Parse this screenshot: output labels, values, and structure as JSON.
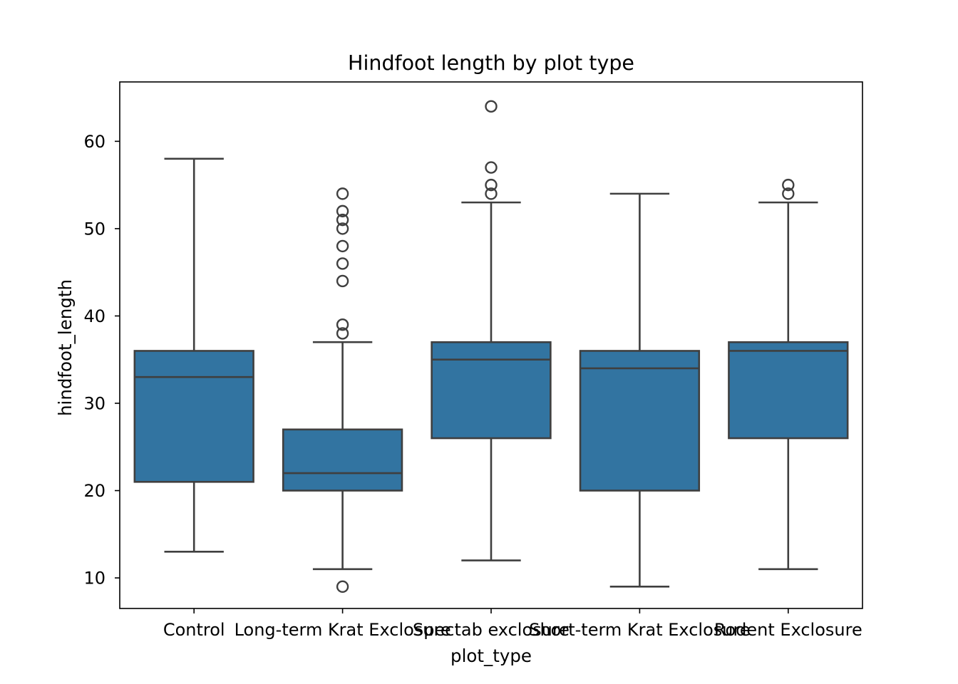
{
  "chart_data": {
    "type": "box",
    "title": "Hindfoot length by plot type",
    "xlabel": "plot_type",
    "ylabel": "hindfoot_length",
    "ylim": [
      6.5,
      66.8
    ],
    "yticks": [
      10,
      20,
      30,
      40,
      50,
      60
    ],
    "grid": false,
    "color": "#3274a1",
    "edge_color": "#3f3f3f",
    "categories": [
      "Control",
      "Long-term Krat Exclosure",
      "Spectab exclosure",
      "Short-term Krat Exclosure",
      "Rodent Exclosure"
    ],
    "boxes": [
      {
        "category": "Control",
        "whisker_low": 13,
        "q1": 21,
        "median": 33,
        "q3": 36,
        "whisker_high": 58,
        "outliers": []
      },
      {
        "category": "Long-term Krat Exclosure",
        "whisker_low": 11,
        "q1": 20,
        "median": 22,
        "q3": 27,
        "whisker_high": 37,
        "outliers": [
          9,
          38,
          39,
          44,
          46,
          48,
          50,
          51,
          52,
          54
        ]
      },
      {
        "category": "Spectab exclosure",
        "whisker_low": 12,
        "q1": 26,
        "median": 35,
        "q3": 37,
        "whisker_high": 53,
        "outliers": [
          54,
          55,
          57,
          64
        ]
      },
      {
        "category": "Short-term Krat Exclosure",
        "whisker_low": 9,
        "q1": 20,
        "median": 34,
        "q3": 36,
        "whisker_high": 54,
        "outliers": []
      },
      {
        "category": "Rodent Exclosure",
        "whisker_low": 11,
        "q1": 26,
        "median": 36,
        "q3": 37,
        "whisker_high": 53,
        "outliers": [
          54,
          55
        ]
      }
    ]
  }
}
